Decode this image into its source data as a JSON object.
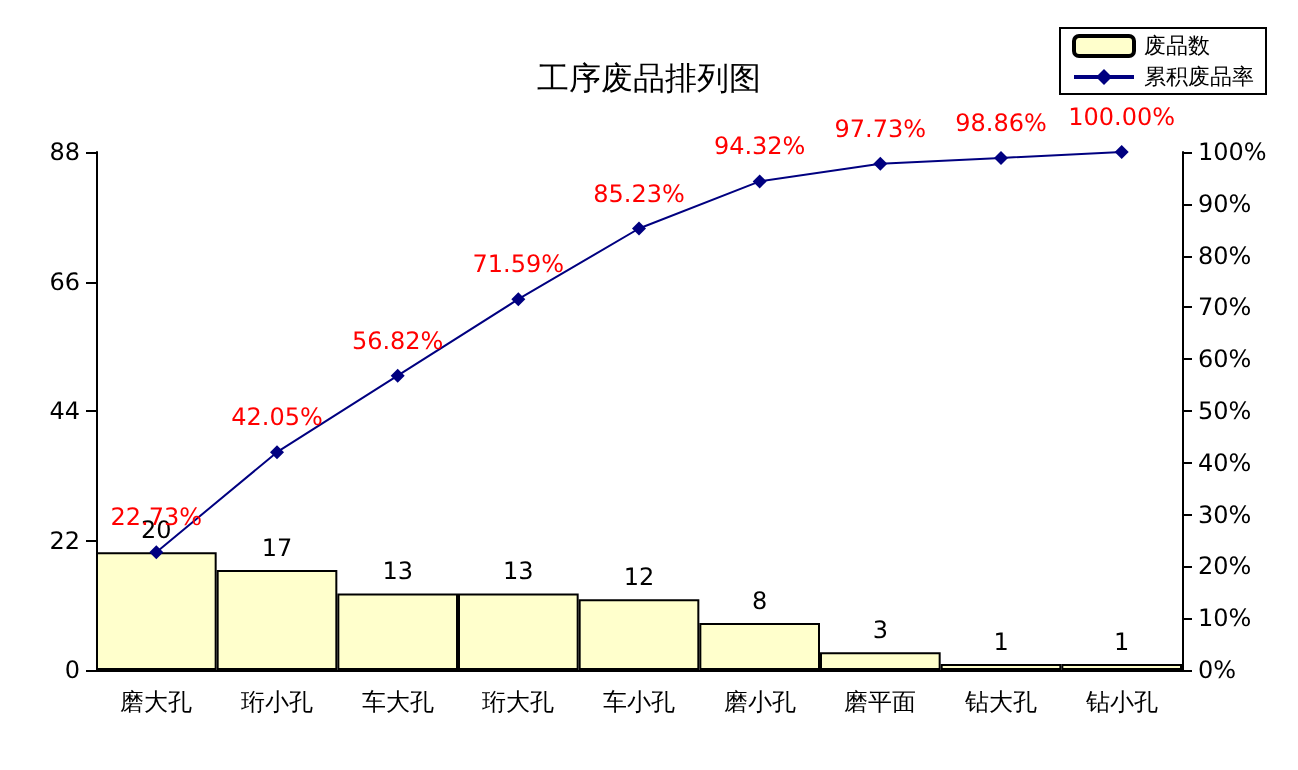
{
  "chart_data": {
    "type": "bar",
    "title": "工序废品排列图",
    "categories": [
      "磨大孔",
      "珩小孔",
      "车大孔",
      "珩大孔",
      "车小孔",
      "磨小孔",
      "磨平面",
      "钻大孔",
      "钻小孔"
    ],
    "series": [
      {
        "name": "废品数",
        "color": "#ffffcc",
        "values": [
          20,
          17,
          13,
          13,
          12,
          8,
          3,
          1,
          1
        ],
        "data_labels": true
      },
      {
        "name": "累积废品率",
        "type": "line",
        "axis": "y2",
        "color": "#000080",
        "marker": "diamond",
        "values": [
          22.73,
          42.05,
          56.82,
          71.59,
          85.23,
          94.32,
          97.73,
          98.86,
          100.0
        ],
        "value_labels": [
          "22.73%",
          "42.05%",
          "56.82%",
          "71.59%",
          "85.23%",
          "94.32%",
          "97.73%",
          "98.86%",
          "100.00%"
        ]
      }
    ],
    "ylim": [
      0,
      88
    ],
    "yticks": [
      0,
      22,
      44,
      66,
      88
    ],
    "y2lim": [
      0,
      100
    ],
    "y2ticks": [
      {
        "value": 0,
        "label": "0%"
      },
      {
        "value": 10,
        "label": "10%"
      },
      {
        "value": 20,
        "label": "20%"
      },
      {
        "value": 30,
        "label": "30%"
      },
      {
        "value": 40,
        "label": "40%"
      },
      {
        "value": 50,
        "label": "50%"
      },
      {
        "value": 60,
        "label": "60%"
      },
      {
        "value": 70,
        "label": "70%"
      },
      {
        "value": 80,
        "label": "80%"
      },
      {
        "value": 90,
        "label": "90%"
      },
      {
        "value": 100,
        "label": "100%"
      }
    ],
    "legend": "top right",
    "grid": false
  }
}
